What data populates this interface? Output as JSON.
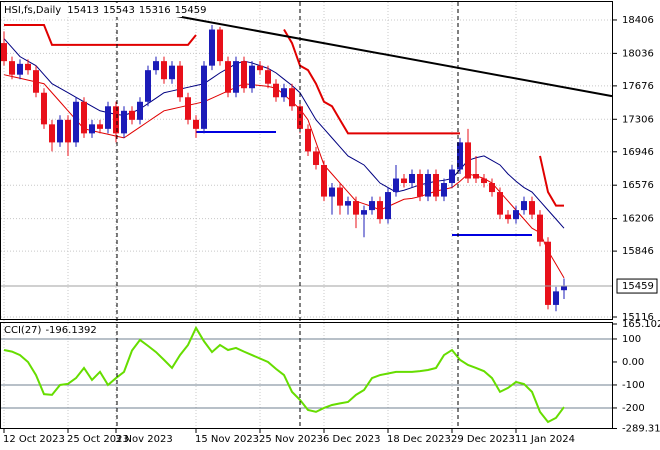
{
  "chart_data": [
    {
      "type": "candlestick",
      "title": "HSI,fs,Daily",
      "categories": [
        "12 Oct 2023",
        null,
        null,
        null,
        null,
        null,
        null,
        null,
        "25 Oct 2023",
        null,
        null,
        null,
        null,
        null,
        "3 Nov 2023",
        null,
        null,
        null,
        null,
        null,
        null,
        null,
        null,
        null,
        "15 Nov 2023",
        null,
        null,
        null,
        null,
        null,
        null,
        null,
        "25 Nov 2023",
        null,
        null,
        null,
        null,
        null,
        null,
        null,
        "6 Dec 2023",
        null,
        null,
        null,
        null,
        null,
        null,
        null,
        "18 Dec 2023",
        null,
        null,
        null,
        null,
        null,
        null,
        null,
        "29 Dec 2023",
        null,
        null,
        null,
        null,
        null,
        null,
        null,
        "11 Jan 2024",
        null,
        null,
        null,
        null,
        null,
        null
      ],
      "open": [
        18150,
        17950,
        17800,
        17920,
        17850,
        17600,
        17250,
        17050,
        17300,
        17050,
        17500,
        17150,
        17250,
        17200,
        17450,
        17150,
        17400,
        17300,
        17500,
        17850,
        17950,
        17750,
        17900,
        17550,
        17300,
        17200,
        17900,
        18300,
        17950,
        17600,
        17950,
        17650,
        17900,
        17850,
        17700,
        17550,
        17650,
        17450,
        17200,
        16950,
        16800,
        16450,
        16550,
        16350,
        16400,
        16250,
        16300,
        16400,
        16200,
        16500,
        16650,
        16600,
        16700,
        16450,
        16700,
        16450,
        16600,
        16750,
        17050,
        16700,
        16650,
        16600,
        16500,
        16250,
        16200,
        16300,
        16400,
        16250,
        15950,
        15250,
        15413
      ],
      "high": [
        18280,
        18000,
        17970,
        17970,
        17900,
        17650,
        17300,
        17350,
        17350,
        17550,
        17550,
        17300,
        17300,
        17500,
        17500,
        17450,
        17450,
        17550,
        17900,
        18000,
        18000,
        17950,
        17950,
        17600,
        17350,
        17950,
        18350,
        18330,
        18000,
        18000,
        18000,
        17950,
        17950,
        17900,
        17750,
        17700,
        17700,
        17500,
        17250,
        17000,
        16850,
        16600,
        16600,
        16450,
        16450,
        16350,
        16450,
        16450,
        16550,
        16800,
        16700,
        16750,
        16750,
        16750,
        16750,
        16650,
        16800,
        17100,
        17200,
        16900,
        16700,
        16650,
        16550,
        16300,
        16350,
        16450,
        16450,
        16300,
        16000,
        15450,
        15543
      ],
      "low": [
        17900,
        17750,
        17750,
        17800,
        17550,
        17200,
        16950,
        17000,
        16900,
        17000,
        17100,
        17100,
        17150,
        17150,
        17050,
        17100,
        17250,
        17250,
        17450,
        17800,
        17700,
        17700,
        17500,
        17250,
        17100,
        17150,
        17850,
        17900,
        17550,
        17550,
        17600,
        17600,
        17800,
        17650,
        17500,
        17500,
        17400,
        17150,
        16900,
        16750,
        16400,
        16250,
        16250,
        16250,
        16100,
        16000,
        16250,
        16150,
        16150,
        16450,
        16550,
        16550,
        16400,
        16400,
        16400,
        16400,
        16550,
        16700,
        16600,
        16600,
        16550,
        16450,
        16200,
        16150,
        16150,
        16250,
        16200,
        15900,
        15200,
        15180,
        15316
      ],
      "close": [
        17950,
        17800,
        17920,
        17850,
        17600,
        17250,
        17050,
        17300,
        17050,
        17500,
        17150,
        17250,
        17200,
        17450,
        17150,
        17400,
        17300,
        17500,
        17850,
        17950,
        17750,
        17900,
        17550,
        17300,
        17200,
        17900,
        18300,
        17950,
        17600,
        17950,
        17650,
        17900,
        17850,
        17700,
        17550,
        17650,
        17450,
        17200,
        16950,
        16800,
        16450,
        16550,
        16350,
        16400,
        16250,
        16300,
        16400,
        16200,
        16500,
        16650,
        16600,
        16700,
        16450,
        16700,
        16450,
        16600,
        16750,
        17050,
        16650,
        16650,
        16600,
        16500,
        16250,
        16200,
        16300,
        16400,
        16250,
        15950,
        15250,
        15400,
        15459
      ],
      "up_color": "#1c1cb8",
      "down_color": "#e8101a",
      "lines": [
        {
          "color": "#000080",
          "width": 1,
          "values": [
            18200,
            18100,
            18000,
            17950,
            17900,
            17800,
            17700,
            17650,
            17600,
            17550,
            17500,
            17450,
            17400,
            17380,
            17360,
            17350,
            17380,
            17420,
            17480,
            17540,
            17600,
            17620,
            17640,
            17660,
            17680,
            17700,
            17760,
            17820,
            17870,
            17920,
            17950,
            17930,
            17900,
            17870,
            17820,
            17750,
            17680,
            17600,
            17450,
            17300,
            17200,
            17100,
            17000,
            16900,
            16850,
            16800,
            16700,
            16600,
            16550,
            16500,
            16520,
            16550,
            16580,
            16600,
            16620,
            16630,
            16650,
            16750,
            16850,
            16880,
            16900,
            16850,
            16800,
            16700,
            16620,
            16550,
            16500,
            16400,
            16300,
            16200,
            16100
          ]
        },
        {
          "color": "#e00000",
          "width": 1,
          "values": [
            17800,
            17780,
            17760,
            17740,
            17720,
            17700,
            17600,
            17500,
            17400,
            17300,
            17200,
            17180,
            17160,
            17140,
            17120,
            17100,
            17160,
            17220,
            17280,
            17340,
            17400,
            17420,
            17440,
            17460,
            17480,
            17500,
            17540,
            17580,
            17620,
            17660,
            17700,
            17690,
            17680,
            17670,
            17650,
            17580,
            17500,
            17420,
            17300,
            17050,
            16800,
            16700,
            16600,
            16500,
            16400,
            16370,
            16340,
            16300,
            16340,
            16380,
            16420,
            16430,
            16450,
            16480,
            16510,
            16530,
            16550,
            16620,
            16700,
            16680,
            16650,
            16600,
            16500,
            16400,
            16300,
            16200,
            16100,
            16050,
            15850,
            15700,
            15550
          ]
        },
        {
          "color": "#e00000",
          "width": 2,
          "values": [
            18350,
            18350,
            18350,
            18350,
            18350,
            18350,
            18130,
            18130,
            18130,
            18130,
            18130,
            18130,
            18130,
            18130,
            18130,
            18130,
            18130,
            18130,
            18130,
            18130,
            18130,
            18130,
            18130,
            18130,
            18240,
            null,
            null,
            null,
            null,
            null,
            null,
            null,
            null,
            null,
            null,
            18300,
            18150,
            17900,
            17850,
            17700,
            17500,
            17450,
            17300,
            17150,
            17150,
            17150,
            17150,
            17150,
            17150,
            17150,
            17150,
            17150,
            17150,
            17150,
            17150,
            17150,
            17150,
            17150,
            null,
            null,
            null,
            null,
            null,
            null,
            null,
            null,
            null,
            16900,
            16500,
            16350,
            16350
          ]
        },
        {
          "color": "#0000e0",
          "width": 2,
          "values": [
            null,
            null,
            null,
            null,
            null,
            null,
            null,
            null,
            null,
            null,
            null,
            null,
            null,
            null,
            null,
            null,
            null,
            null,
            null,
            null,
            null,
            null,
            null,
            null,
            17165,
            17165,
            17165,
            17165,
            17165,
            17165,
            17165,
            17165,
            17165,
            17165,
            17165,
            null,
            null,
            null,
            null,
            null,
            null,
            null,
            null,
            null,
            null,
            null,
            null,
            null,
            null,
            null,
            null,
            null,
            null,
            null,
            null,
            null,
            16024,
            16024,
            16024,
            16024,
            16024,
            16024,
            16024,
            16024,
            16024,
            16024,
            16024,
            null,
            null,
            null,
            null
          ]
        }
      ],
      "trendline": {
        "color": "#000000",
        "x": [
          16,
          70
        ],
        "values": [
          18540,
          17660
        ]
      },
      "ylim": [
        15094,
        18605
      ],
      "yticks": [
        18406,
        18036,
        17676,
        17306,
        16946,
        16576,
        16206,
        15846,
        15116
      ],
      "grid": true
    },
    {
      "type": "line",
      "title": "CCI(27)",
      "color": "#66dd00",
      "values": [
        52,
        45,
        30,
        0,
        -57,
        -140,
        -143,
        -100,
        -95,
        -70,
        -26,
        -78,
        -43,
        -100,
        -70,
        -43,
        50,
        96,
        70,
        43,
        9,
        -26,
        30,
        74,
        148,
        90,
        43,
        74,
        52,
        61,
        45,
        30,
        15,
        0,
        -30,
        -57,
        -130,
        -165,
        -209,
        -217,
        -200,
        -187,
        -180,
        -174,
        -143,
        -122,
        -70,
        -57,
        -50,
        -43,
        -43,
        -43,
        -40,
        -35,
        -26,
        30,
        52,
        9,
        -13,
        -26,
        -40,
        -70,
        -130,
        -113,
        -87,
        -96,
        -130,
        -217,
        -261,
        -243,
        -196.1392
      ],
      "levels": [
        100,
        -100,
        -200
      ],
      "level_color": "#708090",
      "ylim": [
        -289.315,
        165.1026
      ],
      "yticks": [
        165.1026,
        100,
        {
          "value": 0,
          "label": "0.00"
        },
        -100,
        -200,
        -289.315
      ]
    }
  ]
}
